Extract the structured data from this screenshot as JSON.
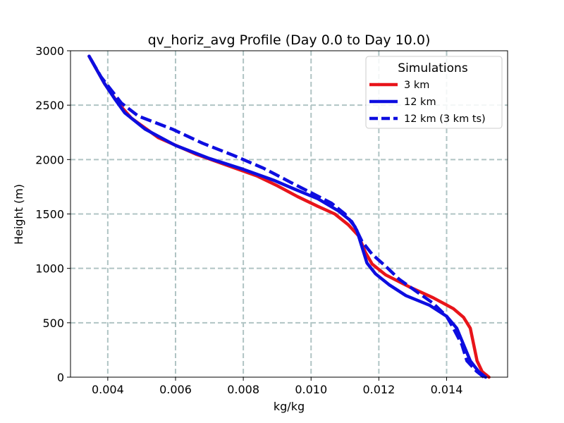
{
  "chart_data": {
    "type": "line",
    "title": "qv_horiz_avg Profile (Day 0.0 to Day 10.0)",
    "xlabel": "kg/kg",
    "ylabel": "Height (m)",
    "xlim": [
      0.0029,
      0.0158
    ],
    "ylim": [
      0,
      3000
    ],
    "xticks": [
      0.004,
      0.006,
      0.008,
      0.01,
      0.012,
      0.014
    ],
    "xtick_labels": [
      "0.004",
      "0.006",
      "0.008",
      "0.010",
      "0.012",
      "0.014"
    ],
    "yticks": [
      0,
      500,
      1000,
      1500,
      2000,
      2500,
      3000
    ],
    "ytick_labels": [
      "0",
      "500",
      "1000",
      "1500",
      "2000",
      "2500",
      "3000"
    ],
    "grid": true,
    "legend": {
      "title": "Simulations",
      "placement": "top-right"
    },
    "series": [
      {
        "name": "3 km",
        "color": "#e8141a",
        "style": "solid",
        "points": [
          [
            0.01525,
            0
          ],
          [
            0.01505,
            50
          ],
          [
            0.0149,
            150
          ],
          [
            0.0148,
            300
          ],
          [
            0.0147,
            450
          ],
          [
            0.0145,
            550
          ],
          [
            0.0142,
            630
          ],
          [
            0.0136,
            730
          ],
          [
            0.0129,
            830
          ],
          [
            0.0122,
            940
          ],
          [
            0.0118,
            1040
          ],
          [
            0.0116,
            1150
          ],
          [
            0.0114,
            1300
          ],
          [
            0.0111,
            1400
          ],
          [
            0.0107,
            1500
          ],
          [
            0.0102,
            1570
          ],
          [
            0.0096,
            1660
          ],
          [
            0.009,
            1760
          ],
          [
            0.0084,
            1850
          ],
          [
            0.0075,
            1950
          ],
          [
            0.0066,
            2050
          ],
          [
            0.0055,
            2200
          ],
          [
            0.0047,
            2380
          ],
          [
            0.0043,
            2520
          ],
          [
            0.0039,
            2700
          ],
          [
            0.00345,
            2950
          ]
        ]
      },
      {
        "name": "12 km",
        "color": "#0d0de0",
        "style": "solid",
        "points": [
          [
            0.01515,
            0
          ],
          [
            0.01495,
            50
          ],
          [
            0.0147,
            150
          ],
          [
            0.0145,
            300
          ],
          [
            0.0143,
            450
          ],
          [
            0.014,
            560
          ],
          [
            0.0135,
            660
          ],
          [
            0.0128,
            750
          ],
          [
            0.0123,
            850
          ],
          [
            0.0119,
            950
          ],
          [
            0.01165,
            1050
          ],
          [
            0.0115,
            1200
          ],
          [
            0.01135,
            1350
          ],
          [
            0.0112,
            1430
          ],
          [
            0.0108,
            1530
          ],
          [
            0.0102,
            1640
          ],
          [
            0.0095,
            1730
          ],
          [
            0.0089,
            1810
          ],
          [
            0.008,
            1910
          ],
          [
            0.007,
            2010
          ],
          [
            0.006,
            2130
          ],
          [
            0.0051,
            2280
          ],
          [
            0.0045,
            2430
          ],
          [
            0.0042,
            2560
          ],
          [
            0.0039,
            2700
          ],
          [
            0.00345,
            2950
          ]
        ]
      },
      {
        "name": "12 km (3 km ts)",
        "color": "#0d0de0",
        "style": "dashed",
        "points": [
          [
            0.0151,
            0
          ],
          [
            0.0149,
            50
          ],
          [
            0.0146,
            150
          ],
          [
            0.01445,
            300
          ],
          [
            0.0142,
            450
          ],
          [
            0.014,
            560
          ],
          [
            0.0136,
            680
          ],
          [
            0.0131,
            790
          ],
          [
            0.0126,
            900
          ],
          [
            0.0122,
            1020
          ],
          [
            0.0118,
            1130
          ],
          [
            0.0115,
            1250
          ],
          [
            0.0113,
            1380
          ],
          [
            0.011,
            1500
          ],
          [
            0.0106,
            1600
          ],
          [
            0.0101,
            1680
          ],
          [
            0.0094,
            1790
          ],
          [
            0.0086,
            1920
          ],
          [
            0.0077,
            2040
          ],
          [
            0.0068,
            2150
          ],
          [
            0.0059,
            2280
          ],
          [
            0.0049,
            2400
          ],
          [
            0.0044,
            2520
          ],
          [
            0.0041,
            2640
          ],
          [
            0.0038,
            2760
          ],
          [
            0.00345,
            2950
          ]
        ]
      }
    ]
  }
}
